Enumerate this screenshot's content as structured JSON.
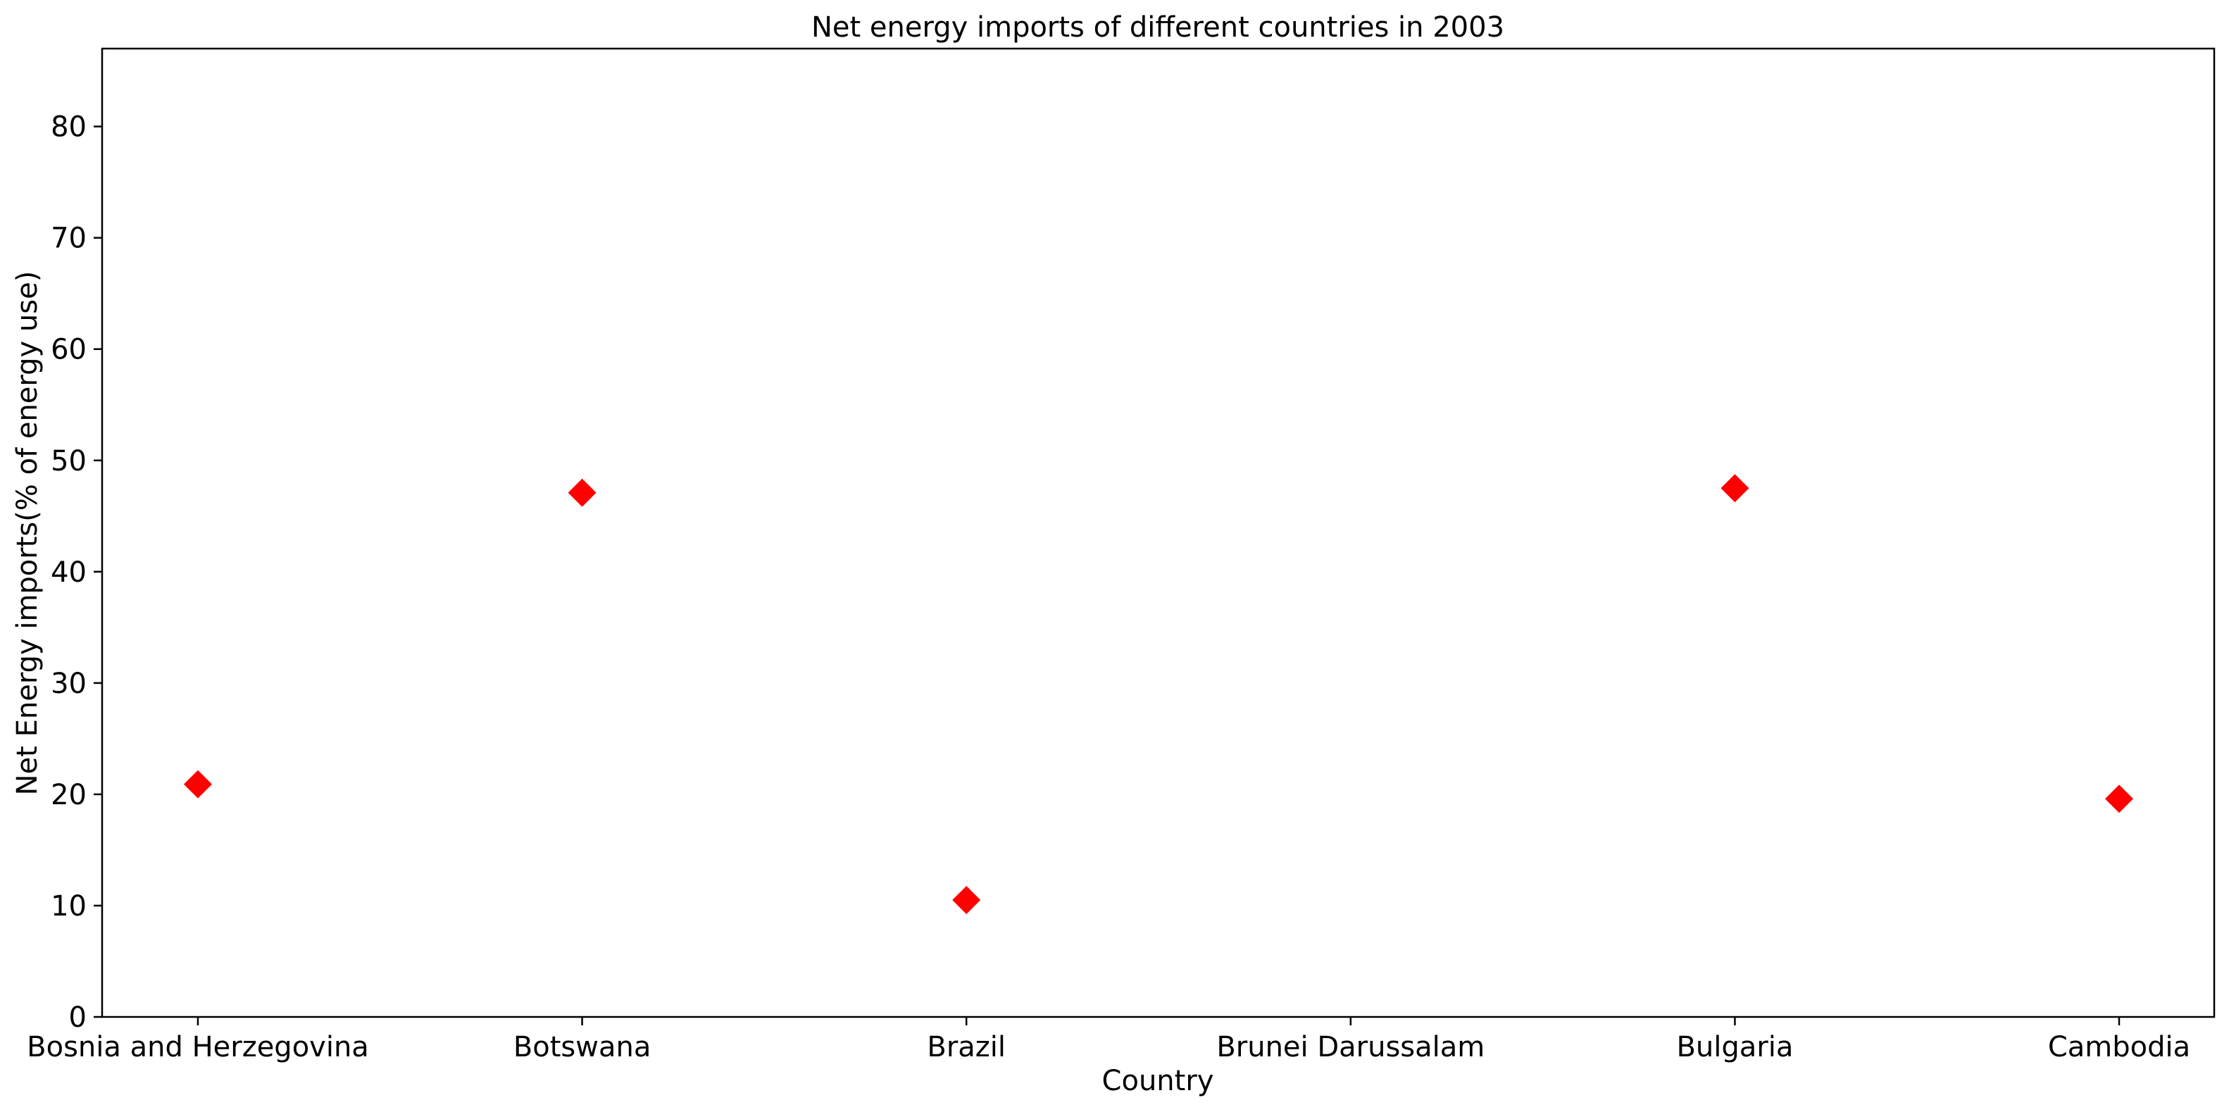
{
  "chart_data": {
    "type": "scatter",
    "title": "Net energy imports of different countries in 2003",
    "xlabel": "Country",
    "ylabel": "Net Energy imports(% of energy use)",
    "categories": [
      "Bosnia and Herzegovina",
      "Botswana",
      "Brazil",
      "Brunei Darussalam",
      "Bulgaria",
      "Cambodia"
    ],
    "series": [
      {
        "values": [
          20.9,
          47.1,
          10.5,
          null,
          47.5,
          19.6
        ],
        "color": "#ff0000",
        "marker": "diamond"
      }
    ],
    "ylim": [
      0,
      87
    ],
    "yticks": [
      0,
      10,
      20,
      30,
      40,
      50,
      60,
      70,
      80
    ],
    "grid": false,
    "legend": "none"
  }
}
